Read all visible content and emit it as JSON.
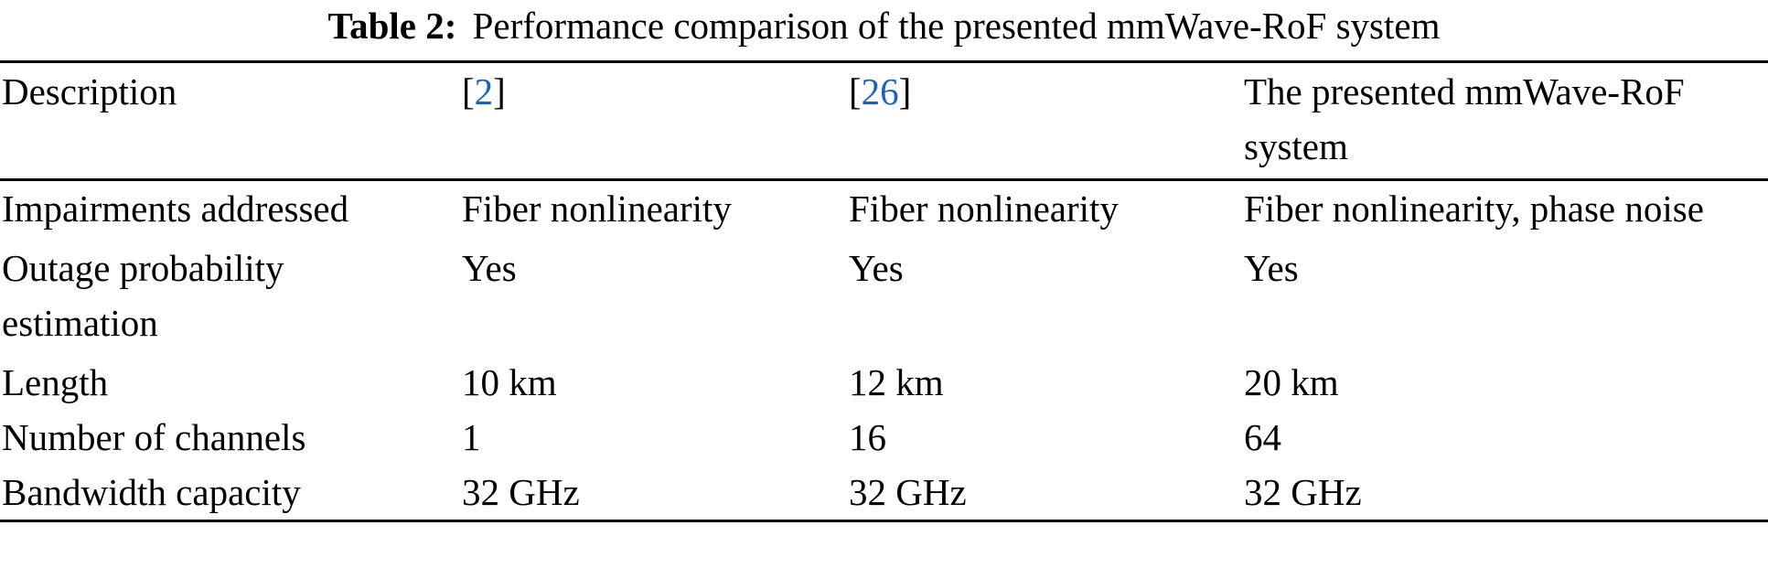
{
  "caption": {
    "label": "Table 2:",
    "text": "Performance comparison of the presented mmWave-RoF system"
  },
  "colors": {
    "citation_link": "#1a61c4",
    "text": "#000000",
    "rule": "#000000"
  },
  "table": {
    "header": {
      "description": "Description",
      "ref1": {
        "open": "[",
        "num": "2",
        "close": "]"
      },
      "ref2": {
        "open": "[",
        "num": "26",
        "close": "]"
      },
      "presented": "The presented mmWave-RoF system"
    },
    "rows": [
      {
        "label": "Impairments addressed",
        "ref1": "Fiber nonlinearity",
        "ref2": "Fiber nonlinearity",
        "presented": "Fiber nonlinearity, phase noise"
      },
      {
        "label": "Outage probability estimation",
        "ref1": "Yes",
        "ref2": "Yes",
        "presented": "Yes"
      },
      {
        "label": "Length",
        "ref1": "10 km",
        "ref2": "12 km",
        "presented": "20 km"
      },
      {
        "label": "Number of channels",
        "ref1": "1",
        "ref2": "16",
        "presented": "64"
      },
      {
        "label": "Bandwidth capacity",
        "ref1": "32 GHz",
        "ref2": "32 GHz",
        "presented": "32 GHz"
      }
    ]
  }
}
